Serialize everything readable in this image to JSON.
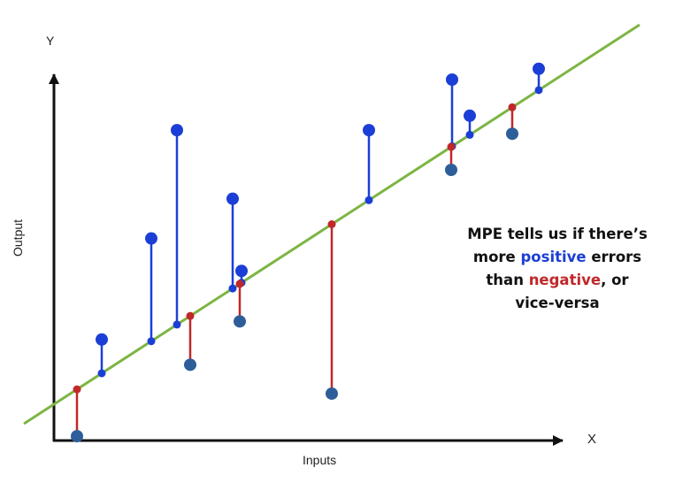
{
  "axes": {
    "y_name": "Y",
    "x_name": "X",
    "y_title": "Output",
    "x_title": "Inputs"
  },
  "callout": {
    "line1": "MPE tells us if there’s",
    "line2_pre": "more ",
    "line2_positive": "positive",
    "line2_post": " errors",
    "line3_pre": "than ",
    "line3_negative": "negative",
    "line3_post": ", or",
    "line4": "vice-versa"
  },
  "colors": {
    "regression_line": "#7db543",
    "positive": "#1b3fd6",
    "negative": "#c0282a",
    "point": "#2d5e99",
    "axis": "#111111"
  },
  "chart_data": {
    "type": "scatter",
    "regression_line": true,
    "points": [
      {
        "x": 26,
        "y": 1.2,
        "sign": "negative"
      },
      {
        "x": 54,
        "y": 28,
        "sign": "positive"
      },
      {
        "x": 110,
        "y": 56,
        "sign": "positive"
      },
      {
        "x": 139,
        "y": 86,
        "sign": "positive"
      },
      {
        "x": 154,
        "y": 21,
        "sign": "negative"
      },
      {
        "x": 202,
        "y": 67,
        "sign": "positive"
      },
      {
        "x": 212,
        "y": 47,
        "sign": "positive"
      },
      {
        "x": 210,
        "y": 33,
        "sign": "negative"
      },
      {
        "x": 314,
        "y": 13,
        "sign": "negative"
      },
      {
        "x": 356,
        "y": 86,
        "sign": "positive"
      },
      {
        "x": 450,
        "y": 100,
        "sign": "positive"
      },
      {
        "x": 449,
        "y": 75,
        "sign": "negative"
      },
      {
        "x": 470,
        "y": 90,
        "sign": "positive"
      },
      {
        "x": 518,
        "y": 85,
        "sign": "negative"
      },
      {
        "x": 548,
        "y": 103,
        "sign": "positive"
      }
    ]
  }
}
